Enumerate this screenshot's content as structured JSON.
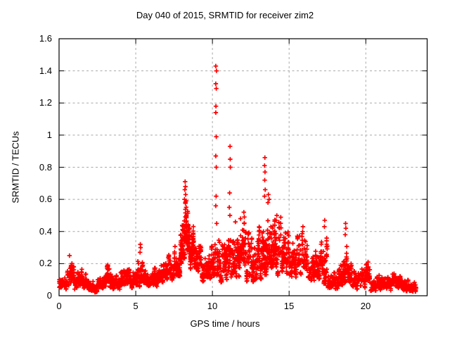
{
  "title": "Day 040 of 2015, SRMTID for receiver zim2",
  "xlabel": "GPS time / hours",
  "ylabel": "SRMTID / TECUs",
  "colors": {
    "marker": "#ff0000",
    "grid": "#a8a8a8",
    "border": "#000000",
    "background": "#ffffff",
    "text": "#000000"
  },
  "chart_data": {
    "type": "scatter",
    "title": "Day 040 of 2015, SRMTID for receiver zim2",
    "xlabel": "GPS time / hours",
    "ylabel": "SRMTID / TECUs",
    "xlim": [
      0,
      24
    ],
    "ylim": [
      0,
      1.6
    ],
    "grid": true,
    "legend": "none",
    "marker": "plus",
    "marker_color": "#ff0000",
    "x_ticks": [
      {
        "value": 0,
        "label": "0"
      },
      {
        "value": 5,
        "label": "5"
      },
      {
        "value": 10,
        "label": "10"
      },
      {
        "value": 15,
        "label": "15"
      },
      {
        "value": 20,
        "label": "20"
      }
    ],
    "y_ticks": [
      {
        "value": 0,
        "label": "0"
      },
      {
        "value": 0.2,
        "label": "0.2"
      },
      {
        "value": 0.4,
        "label": "0.4"
      },
      {
        "value": 0.6,
        "label": "0.6"
      },
      {
        "value": 0.8,
        "label": "0.8"
      },
      {
        "value": 1.0,
        "label": "1"
      },
      {
        "value": 1.2,
        "label": "1.2"
      },
      {
        "value": 1.4,
        "label": "1.4"
      },
      {
        "value": 1.6,
        "label": "1.6"
      }
    ],
    "band_envelope_note": "dense scatter of ~2700 '+' points; bins are [start_hour, end_hour, min_value, max_value, approx_count]",
    "band_envelope": [
      [
        0.0,
        0.5,
        0.03,
        0.14,
        55
      ],
      [
        0.5,
        1.0,
        0.04,
        0.22,
        60
      ],
      [
        1.0,
        1.5,
        0.04,
        0.18,
        55
      ],
      [
        1.5,
        2.0,
        0.03,
        0.14,
        50
      ],
      [
        2.0,
        2.5,
        0.02,
        0.1,
        50
      ],
      [
        2.5,
        3.0,
        0.03,
        0.13,
        50
      ],
      [
        3.0,
        3.5,
        0.04,
        0.2,
        58
      ],
      [
        3.5,
        4.0,
        0.04,
        0.16,
        55
      ],
      [
        4.0,
        4.5,
        0.05,
        0.21,
        58
      ],
      [
        4.5,
        5.0,
        0.04,
        0.17,
        55
      ],
      [
        5.0,
        5.5,
        0.05,
        0.24,
        58
      ],
      [
        5.5,
        6.0,
        0.04,
        0.16,
        55
      ],
      [
        6.0,
        6.5,
        0.05,
        0.18,
        55
      ],
      [
        6.5,
        7.0,
        0.07,
        0.23,
        58
      ],
      [
        7.0,
        7.5,
        0.09,
        0.28,
        62
      ],
      [
        7.5,
        7.9,
        0.12,
        0.36,
        60
      ],
      [
        7.9,
        8.1,
        0.16,
        0.5,
        45
      ],
      [
        8.1,
        8.45,
        0.2,
        0.64,
        70
      ],
      [
        8.45,
        8.8,
        0.15,
        0.46,
        60
      ],
      [
        8.8,
        9.3,
        0.11,
        0.34,
        62
      ],
      [
        9.3,
        9.8,
        0.08,
        0.28,
        58
      ],
      [
        9.8,
        10.15,
        0.09,
        0.33,
        48
      ],
      [
        10.15,
        10.5,
        0.08,
        0.4,
        40
      ],
      [
        10.5,
        10.85,
        0.08,
        0.36,
        45
      ],
      [
        10.85,
        11.2,
        0.1,
        0.5,
        50
      ],
      [
        11.2,
        11.7,
        0.09,
        0.46,
        62
      ],
      [
        11.7,
        12.2,
        0.09,
        0.5,
        65
      ],
      [
        12.2,
        12.7,
        0.08,
        0.42,
        65
      ],
      [
        12.7,
        13.2,
        0.1,
        0.46,
        65
      ],
      [
        13.2,
        13.55,
        0.12,
        0.56,
        55
      ],
      [
        13.55,
        14.0,
        0.12,
        0.6,
        65
      ],
      [
        14.0,
        14.5,
        0.12,
        0.5,
        70
      ],
      [
        14.5,
        15.0,
        0.11,
        0.42,
        65
      ],
      [
        15.0,
        15.5,
        0.1,
        0.36,
        62
      ],
      [
        15.5,
        16.2,
        0.11,
        0.42,
        70
      ],
      [
        16.2,
        16.8,
        0.08,
        0.31,
        62
      ],
      [
        16.8,
        17.25,
        0.09,
        0.36,
        52
      ],
      [
        17.25,
        17.5,
        0.07,
        0.44,
        38
      ],
      [
        17.5,
        18.2,
        0.04,
        0.2,
        65
      ],
      [
        18.2,
        18.6,
        0.05,
        0.28,
        52
      ],
      [
        18.6,
        18.8,
        0.08,
        0.42,
        32
      ],
      [
        18.8,
        19.3,
        0.05,
        0.21,
        55
      ],
      [
        19.3,
        20.0,
        0.04,
        0.18,
        62
      ],
      [
        20.0,
        20.3,
        0.05,
        0.21,
        40
      ],
      [
        20.3,
        21.0,
        0.03,
        0.13,
        62
      ],
      [
        21.0,
        21.7,
        0.03,
        0.12,
        62
      ],
      [
        21.7,
        22.3,
        0.04,
        0.15,
        65
      ],
      [
        22.3,
        23.3,
        0.02,
        0.1,
        80
      ]
    ],
    "outliers": [
      [
        0.68,
        0.25
      ],
      [
        5.28,
        0.27
      ],
      [
        5.3,
        0.32
      ],
      [
        5.32,
        0.3
      ],
      [
        8.18,
        0.6
      ],
      [
        8.2,
        0.66
      ],
      [
        8.22,
        0.71
      ],
      [
        8.24,
        0.68
      ],
      [
        8.25,
        0.63
      ],
      [
        10.22,
        1.43
      ],
      [
        10.26,
        1.4
      ],
      [
        10.22,
        1.32
      ],
      [
        10.25,
        1.29
      ],
      [
        10.23,
        1.18
      ],
      [
        10.22,
        1.14
      ],
      [
        10.25,
        0.99
      ],
      [
        10.22,
        0.87
      ],
      [
        10.25,
        0.8
      ],
      [
        10.24,
        0.62
      ],
      [
        10.22,
        0.56
      ],
      [
        10.28,
        0.45
      ],
      [
        11.1,
        0.55
      ],
      [
        11.12,
        0.64
      ],
      [
        11.15,
        0.93
      ],
      [
        11.16,
        0.85
      ],
      [
        11.17,
        0.8
      ],
      [
        11.14,
        0.5
      ],
      [
        11.5,
        0.46
      ],
      [
        12.05,
        0.52
      ],
      [
        12.08,
        0.49
      ],
      [
        13.4,
        0.81
      ],
      [
        13.4,
        0.62
      ],
      [
        13.41,
        0.72
      ],
      [
        13.42,
        0.86
      ],
      [
        13.43,
        0.77
      ],
      [
        13.44,
        0.66
      ],
      [
        13.62,
        0.58
      ],
      [
        13.65,
        0.63
      ],
      [
        13.7,
        0.6
      ],
      [
        14.15,
        0.47
      ],
      [
        14.2,
        0.5
      ],
      [
        15.88,
        0.4
      ],
      [
        15.9,
        0.43
      ],
      [
        17.3,
        0.43
      ],
      [
        17.32,
        0.47
      ],
      [
        18.66,
        0.38
      ],
      [
        18.68,
        0.45
      ],
      [
        18.7,
        0.42
      ],
      [
        20.15,
        0.21
      ]
    ]
  }
}
